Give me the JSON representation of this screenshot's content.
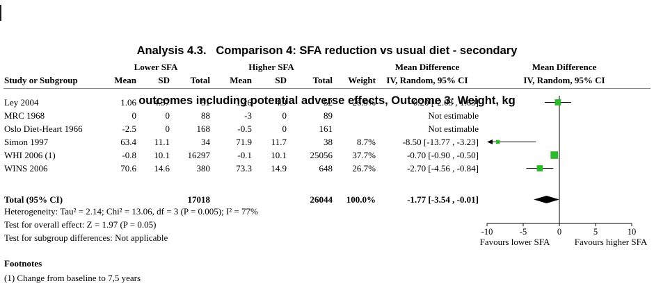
{
  "title": {
    "line1": "Analysis 4.3.   Comparison 4: SFA reduction vs usual diet - secondary",
    "line2": "outcomes including potential adverse effects, Outcome 3: Weight, kg"
  },
  "header": {
    "group_lower": "Lower SFA",
    "group_higher": "Higher SFA",
    "group_md_text": "Mean Difference",
    "group_md_plot": "Mean Difference",
    "study": "Study or Subgroup",
    "mean": "Mean",
    "sd": "SD",
    "total": "Total",
    "weight": "Weight",
    "ci_method": "IV, Random, 95% CI",
    "ci_method_plot": "IV, Random, 95% CI"
  },
  "stats": {
    "heterogeneity": "Heterogeneity: Tau² = 2.14; Chi² = 13.06, df = 3 (P = 0.005); I² = 77%",
    "overall_effect": "Test for overall effect: Z = 1.97 (P = 0.05)",
    "subgroup_differences": "Test for subgroup differences: Not applicable"
  },
  "footnotes": {
    "heading": "Footnotes",
    "items": [
      "(1) Change from baseline to 7,5 years"
    ]
  },
  "chart_data": {
    "type": "forest",
    "effect_measure": "Mean Difference",
    "method": "IV, Random, 95% CI",
    "marker_color": "#2eb82e",
    "diamond_color": "#000000",
    "x_axis": {
      "min": -10,
      "max": 10,
      "ticks": [
        -10,
        -5,
        0,
        5,
        10
      ],
      "label_left": "Favours lower SFA",
      "label_right": "Favours higher SFA"
    },
    "studies": [
      {
        "name": "Ley 2004",
        "mean1": "1.06",
        "sd1": "4.57",
        "total1": "51",
        "mean2": "1.26",
        "sd2": "4.9",
        "total2": "52",
        "weight": 26.9,
        "weight_label": "26.9%",
        "ci_label": "-0.20 [-2.03 , 1.63]",
        "md": -0.2,
        "low": -2.03,
        "high": 1.63,
        "estimable": true
      },
      {
        "name": "MRC 1968",
        "mean1": "0",
        "sd1": "0",
        "total1": "88",
        "mean2": "-3",
        "sd2": "0",
        "total2": "89",
        "weight_label": "",
        "ci_label": "Not estimable",
        "estimable": false
      },
      {
        "name": "Oslo Diet-Heart 1966",
        "mean1": "-2.5",
        "sd1": "0",
        "total1": "168",
        "mean2": "-0.5",
        "sd2": "0",
        "total2": "161",
        "weight_label": "",
        "ci_label": "Not estimable",
        "estimable": false
      },
      {
        "name": "Simon 1997",
        "mean1": "63.4",
        "sd1": "11.1",
        "total1": "34",
        "mean2": "71.9",
        "sd2": "11.7",
        "total2": "38",
        "weight": 8.7,
        "weight_label": "8.7%",
        "ci_label": "-8.50 [-13.77 , -3.23]",
        "md": -8.5,
        "low": -13.77,
        "high": -3.23,
        "estimable": true
      },
      {
        "name": "WHI 2006 (1)",
        "mean1": "-0.8",
        "sd1": "10.1",
        "total1": "16297",
        "mean2": "-0.1",
        "sd2": "10.1",
        "total2": "25056",
        "weight": 37.7,
        "weight_label": "37.7%",
        "ci_label": "-0.70 [-0.90 , -0.50]",
        "md": -0.7,
        "low": -0.9,
        "high": -0.5,
        "estimable": true
      },
      {
        "name": "WINS 2006",
        "mean1": "70.6",
        "sd1": "14.6",
        "total1": "380",
        "mean2": "73.3",
        "sd2": "14.9",
        "total2": "648",
        "weight": 26.7,
        "weight_label": "26.7%",
        "ci_label": "-2.70 [-4.56 , -0.84]",
        "md": -2.7,
        "low": -4.56,
        "high": -0.84,
        "estimable": true
      }
    ],
    "total": {
      "label": "Total (95% CI)",
      "total1": "17018",
      "total2": "26044",
      "weight_label": "100.0%",
      "ci_label": "-1.77 [-3.54 , -0.01]",
      "md": -1.77,
      "low": -3.54,
      "high": -0.01
    }
  }
}
